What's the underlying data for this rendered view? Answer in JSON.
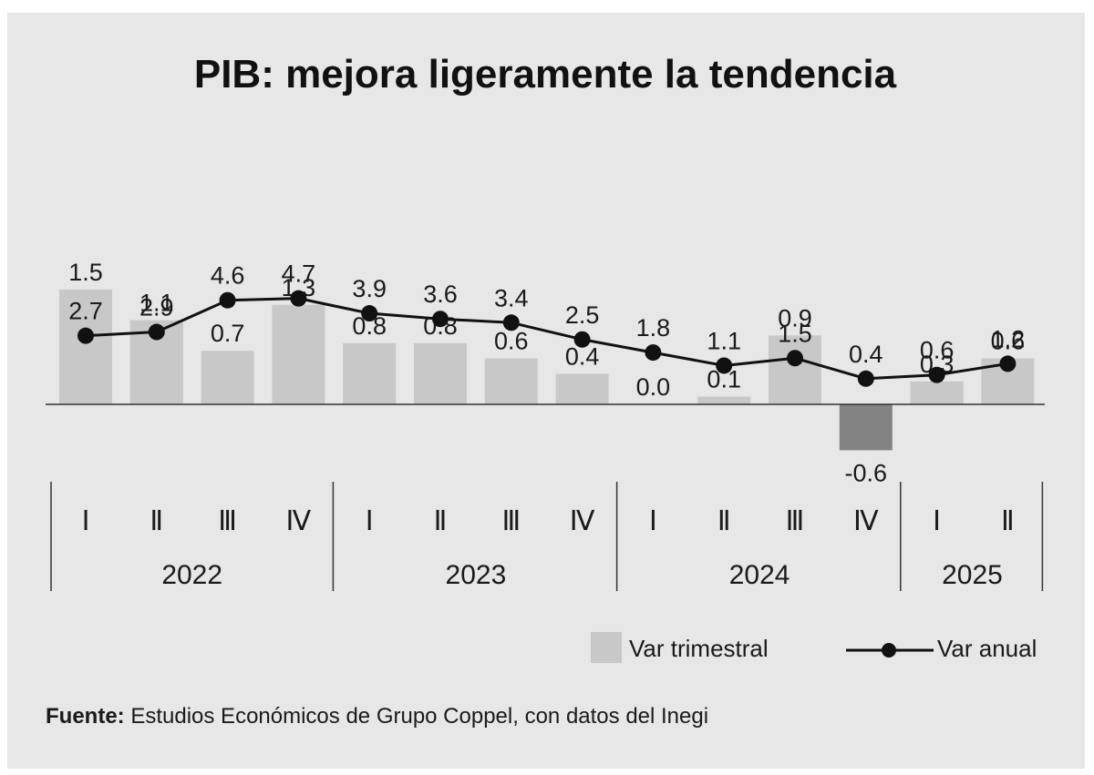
{
  "chart_data": {
    "type": "bar+line",
    "title": "PIB: mejora ligeramente la tendencia",
    "quarter_labels": [
      "Ⅰ",
      "Ⅱ",
      "Ⅲ",
      "Ⅳ",
      "Ⅰ",
      "Ⅱ",
      "Ⅲ",
      "Ⅳ",
      "Ⅰ",
      "Ⅱ",
      "Ⅲ",
      "Ⅳ",
      "Ⅰ",
      "Ⅱ"
    ],
    "years": [
      {
        "label": "2022",
        "count": 4
      },
      {
        "label": "2023",
        "count": 4
      },
      {
        "label": "2024",
        "count": 4
      },
      {
        "label": "2025",
        "count": 2
      }
    ],
    "series": [
      {
        "name": "Var trimestral",
        "kind": "bar",
        "color": "#c8c8c8",
        "negative_color": "#838383",
        "values": [
          1.5,
          1.1,
          0.7,
          1.3,
          0.8,
          0.8,
          0.6,
          0.4,
          0.0,
          0.1,
          0.9,
          -0.6,
          0.3,
          0.6
        ],
        "labels": [
          "1.5",
          "1.1",
          "0.7",
          "1.3",
          "0.8",
          "0.8",
          "0.6",
          "0.4",
          "0.0",
          "0.1",
          "0.9",
          "-0.6",
          "0.3",
          "0.6"
        ]
      },
      {
        "name": "Var anual",
        "kind": "line",
        "color": "#111111",
        "values": [
          2.7,
          2.9,
          4.6,
          4.7,
          3.9,
          3.6,
          3.4,
          2.5,
          1.8,
          1.1,
          1.5,
          0.4,
          0.6,
          1.2
        ],
        "labels": [
          "2.7",
          "2.9",
          "4.6",
          "4.7",
          "3.9",
          "3.6",
          "3.4",
          "2.5",
          "1.8",
          "1.1",
          "1.5",
          "0.4",
          "0.6",
          "1.2"
        ]
      }
    ]
  },
  "legend": {
    "bar_label": "Var trimestral",
    "line_label": "Var anual",
    "position": "bottom-right"
  },
  "source": {
    "bold": "Fuente:",
    "text": " Estudios Económicos de Grupo Coppel, con datos del Inegi"
  },
  "colors": {
    "background": "#e7e7e7",
    "bar": "#c8c8c8",
    "bar_negative": "#838383",
    "line": "#111111"
  }
}
